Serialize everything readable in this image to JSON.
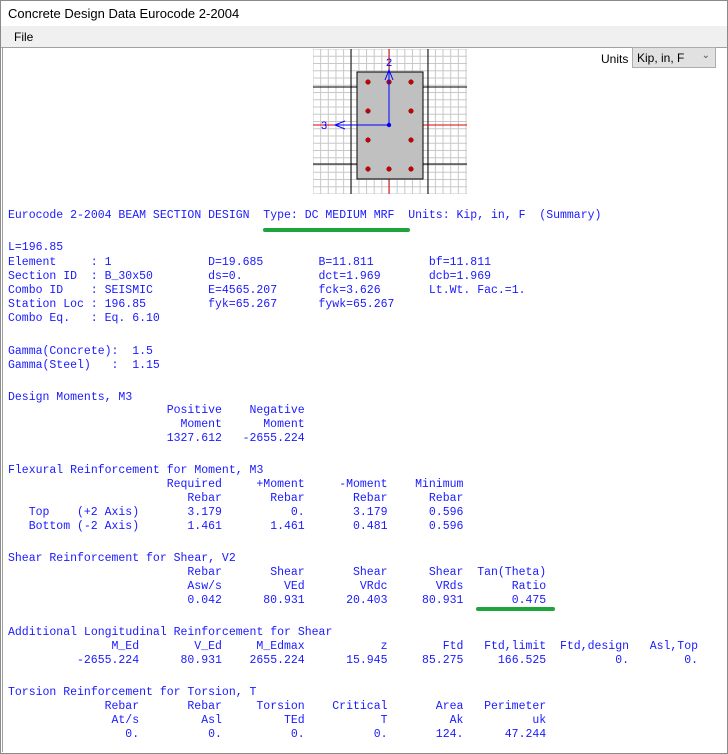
{
  "window": {
    "title": "Concrete Design Data  Eurocode 2-2004"
  },
  "menu": {
    "file": "File"
  },
  "units": {
    "label": "Units",
    "value": "Kip, in, F"
  },
  "diagram": {
    "axis_2_label": "2",
    "axis_3_label": "3",
    "concrete_color": "#c0c0c0",
    "rebar_color": "#cc0000",
    "axis_color": "#0000ff"
  },
  "heading": {
    "main": "Eurocode 2-2004 BEAM SECTION DESIGN",
    "type": "Type: DC MEDIUM MRF",
    "units": "Units: Kip, in, F",
    "summary": "(Summary)"
  },
  "info": {
    "length": "L=196.85",
    "rows": [
      {
        "label": "Element",
        "value": ": 1",
        "c2": "D=19.685",
        "c3": "B=11.811",
        "c4": "bf=11.811"
      },
      {
        "label": "Section ID",
        "value": ": B_30x50",
        "c2": "ds=0.",
        "c3": "dct=1.969",
        "c4": "dcb=1.969"
      },
      {
        "label": "Combo ID",
        "value": ": SEISMIC",
        "c2": "E=4565.207",
        "c3": "fck=3.626",
        "c4": "Lt.Wt. Fac.=1."
      },
      {
        "label": "Station Loc",
        "value": ": 196.85",
        "c2": "fyk=65.267",
        "c3": "fywk=65.267",
        "c4": ""
      },
      {
        "label": "Combo Eq.",
        "value": ": Eq. 6.10",
        "c2": "",
        "c3": "",
        "c4": ""
      }
    ]
  },
  "gamma": {
    "rows": [
      {
        "label": "Gamma(Concrete)",
        "value": ":  1.5"
      },
      {
        "label": "Gamma(Steel)",
        "value": ":  1.15"
      }
    ]
  },
  "design_moments": {
    "title": "Design Moments, M3",
    "header_rows": [
      [
        "Positive",
        "Negative"
      ],
      [
        "Moment",
        "Moment"
      ]
    ],
    "rows": [
      {
        "label": "",
        "axis": "",
        "values": [
          "1327.612",
          "-2655.224"
        ]
      }
    ]
  },
  "flexural": {
    "title": "Flexural Reinforcement for Moment, M3",
    "header_rows": [
      [
        "Required",
        "+Moment",
        "-Moment",
        "Minimum"
      ],
      [
        "Rebar",
        "Rebar",
        "Rebar",
        "Rebar"
      ]
    ],
    "rows": [
      {
        "label": "Top",
        "axis": "(+2 Axis)",
        "values": [
          "3.179",
          "0.",
          "3.179",
          "0.596"
        ]
      },
      {
        "label": "Bottom",
        "axis": "(-2 Axis)",
        "values": [
          "1.461",
          "1.461",
          "0.481",
          "0.596"
        ]
      }
    ]
  },
  "shear": {
    "title": "Shear Reinforcement for Shear, V2",
    "header_rows": [
      [
        "Rebar",
        "Shear",
        "Shear",
        "Shear",
        "Tan(Theta)"
      ],
      [
        "Asw/s",
        "VEd",
        "VRdc",
        "VRds",
        "Ratio"
      ]
    ],
    "rows": [
      {
        "label": "",
        "axis": "",
        "values": [
          "0.042",
          "80.931",
          "20.403",
          "80.931",
          "0.475"
        ]
      }
    ]
  },
  "additional": {
    "title": "Additional Longitudinal Reinforcement for Shear",
    "header_rows": [
      [
        "M_Ed",
        "V_Ed",
        "M_Edmax",
        "z",
        "Ftd",
        "Ftd,limit",
        "Ftd,design",
        "Asl,Top"
      ]
    ],
    "rows": [
      {
        "label": "",
        "axis": "",
        "values": [
          "-2655.224",
          "80.931",
          "2655.224",
          "15.945",
          "85.275",
          "166.525",
          "0.",
          "0."
        ]
      }
    ]
  },
  "torsion": {
    "title": "Torsion Reinforcement for Torsion, T",
    "header_rows": [
      [
        "Rebar",
        "Rebar",
        "Torsion",
        "Critical",
        "Area",
        "Perimeter"
      ],
      [
        "At/s",
        "Asl",
        "TEd",
        "T",
        "Ak",
        "uk"
      ]
    ],
    "rows": [
      {
        "label": "",
        "axis": "",
        "values": [
          "0.",
          "0.",
          "0.",
          "0.",
          "124.",
          "47.244"
        ]
      }
    ]
  },
  "highlight_color": "#1ea43c"
}
